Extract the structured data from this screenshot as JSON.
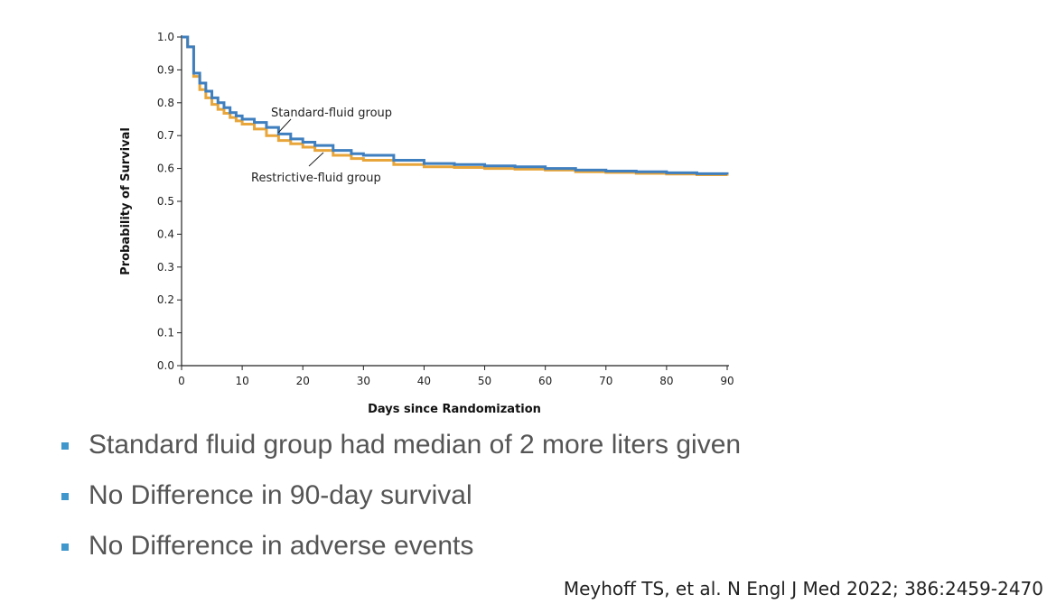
{
  "chart_data": {
    "type": "line",
    "xlabel": "Days since Randomization",
    "ylabel": "Probability of Survival",
    "xlim": [
      0,
      90
    ],
    "ylim": [
      0,
      1.0
    ],
    "x_ticks": [
      "0",
      "10",
      "20",
      "30",
      "40",
      "50",
      "60",
      "70",
      "80",
      "90"
    ],
    "y_ticks": [
      "0.0",
      "0.1",
      "0.2",
      "0.3",
      "0.4",
      "0.5",
      "0.6",
      "0.7",
      "0.8",
      "0.9",
      "1.0"
    ],
    "grid": false,
    "step": true,
    "series": [
      {
        "name": "Standard-fluid group",
        "color": "#3f7fbf",
        "x": [
          0,
          1,
          2,
          3,
          4,
          5,
          6,
          7,
          8,
          9,
          10,
          12,
          14,
          16,
          18,
          20,
          22,
          25,
          28,
          30,
          35,
          40,
          45,
          50,
          55,
          60,
          65,
          70,
          75,
          80,
          85,
          90
        ],
        "y": [
          1.0,
          0.97,
          0.89,
          0.86,
          0.835,
          0.815,
          0.8,
          0.785,
          0.77,
          0.76,
          0.75,
          0.74,
          0.725,
          0.705,
          0.69,
          0.68,
          0.67,
          0.655,
          0.645,
          0.64,
          0.625,
          0.615,
          0.612,
          0.608,
          0.605,
          0.6,
          0.595,
          0.592,
          0.59,
          0.587,
          0.584,
          0.582
        ]
      },
      {
        "name": "Restrictive-fluid group",
        "color": "#e8a53a",
        "x": [
          0,
          1,
          2,
          3,
          4,
          5,
          6,
          7,
          8,
          9,
          10,
          12,
          14,
          16,
          18,
          20,
          22,
          25,
          28,
          30,
          35,
          40,
          45,
          50,
          55,
          60,
          65,
          70,
          75,
          80,
          85,
          90
        ],
        "y": [
          1.0,
          0.97,
          0.88,
          0.84,
          0.815,
          0.795,
          0.78,
          0.768,
          0.755,
          0.745,
          0.735,
          0.72,
          0.7,
          0.685,
          0.675,
          0.665,
          0.655,
          0.64,
          0.63,
          0.625,
          0.612,
          0.605,
          0.603,
          0.6,
          0.598,
          0.595,
          0.59,
          0.588,
          0.585,
          0.583,
          0.581,
          0.578
        ]
      }
    ]
  },
  "bullets": [
    "Standard fluid group had median of 2 more liters given",
    "No Difference in 90-day survival",
    "No Difference in adverse events"
  ],
  "citation": "Meyhoff TS, et al. N Engl J Med 2022; 386:2459-2470",
  "bullet_color": "#3f97cc"
}
